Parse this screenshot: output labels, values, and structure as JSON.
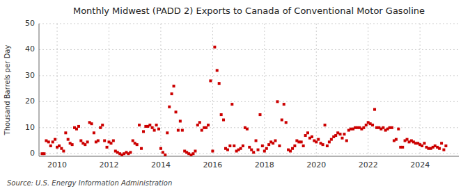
{
  "chart_data": {
    "type": "scatter",
    "title": "Monthly Midwest (PADD 2) Exports to Canada of Conventional Motor Gasoline",
    "ylabel": "Thousand Barrels per Day",
    "source": "Source: U.S. Energy Information Administration",
    "color": "#cc0000",
    "marker": "square",
    "grid": true,
    "xlim": [
      2009.3,
      2025.5
    ],
    "xticks": [
      2010,
      2012,
      2014,
      2016,
      2018,
      2020,
      2022,
      2024
    ],
    "ylim": [
      -1,
      50
    ],
    "yticks": [
      0,
      10,
      20,
      30,
      40,
      50
    ],
    "x": [
      2009.42,
      2009.5,
      2009.58,
      2009.67,
      2009.75,
      2009.83,
      2009.92,
      2010.0,
      2010.08,
      2010.17,
      2010.25,
      2010.33,
      2010.42,
      2010.5,
      2010.58,
      2010.67,
      2010.75,
      2010.83,
      2010.92,
      2011.0,
      2011.08,
      2011.17,
      2011.25,
      2011.33,
      2011.42,
      2011.5,
      2011.58,
      2011.67,
      2011.75,
      2011.83,
      2011.92,
      2012.0,
      2012.08,
      2012.17,
      2012.25,
      2012.33,
      2012.42,
      2012.5,
      2012.58,
      2012.67,
      2012.75,
      2012.83,
      2012.92,
      2013.0,
      2013.08,
      2013.17,
      2013.25,
      2013.33,
      2013.42,
      2013.5,
      2013.58,
      2013.67,
      2013.75,
      2013.83,
      2013.92,
      2014.0,
      2014.08,
      2014.17,
      2014.25,
      2014.33,
      2014.42,
      2014.5,
      2014.58,
      2014.67,
      2014.75,
      2014.83,
      2014.92,
      2015.0,
      2015.08,
      2015.17,
      2015.25,
      2015.33,
      2015.42,
      2015.5,
      2015.58,
      2015.67,
      2015.75,
      2015.83,
      2015.92,
      2016.0,
      2016.08,
      2016.17,
      2016.25,
      2016.33,
      2016.42,
      2016.5,
      2016.58,
      2016.67,
      2016.75,
      2016.83,
      2016.92,
      2017.0,
      2017.08,
      2017.17,
      2017.25,
      2017.33,
      2017.42,
      2017.5,
      2017.58,
      2017.67,
      2017.75,
      2017.83,
      2017.92,
      2018.0,
      2018.08,
      2018.17,
      2018.25,
      2018.33,
      2018.42,
      2018.5,
      2018.58,
      2018.67,
      2018.75,
      2018.83,
      2018.92,
      2019.0,
      2019.08,
      2019.17,
      2019.25,
      2019.33,
      2019.42,
      2019.5,
      2019.58,
      2019.67,
      2019.75,
      2019.83,
      2019.92,
      2020.0,
      2020.08,
      2020.17,
      2020.25,
      2020.33,
      2020.42,
      2020.5,
      2020.58,
      2020.67,
      2020.75,
      2020.83,
      2020.92,
      2021.0,
      2021.08,
      2021.17,
      2021.25,
      2021.33,
      2021.42,
      2021.5,
      2021.58,
      2021.67,
      2021.75,
      2021.83,
      2021.92,
      2022.0,
      2022.08,
      2022.17,
      2022.25,
      2022.33,
      2022.42,
      2022.5,
      2022.58,
      2022.67,
      2022.75,
      2022.83,
      2022.92,
      2023.0,
      2023.08,
      2023.17,
      2023.25,
      2023.33,
      2023.42,
      2023.5,
      2023.58,
      2023.67,
      2023.75,
      2023.83,
      2023.92,
      2024.0,
      2024.08,
      2024.17,
      2024.25,
      2024.33,
      2024.42,
      2024.5,
      2024.58,
      2024.67,
      2024.75,
      2024.83,
      2024.92,
      2025.0
    ],
    "values": [
      0.0,
      0.0,
      5.0,
      4.5,
      3.0,
      4.5,
      5.5,
      2.5,
      3.0,
      2.0,
      1.0,
      8.0,
      5.5,
      4.0,
      3.5,
      10.0,
      9.5,
      10.5,
      5.0,
      4.0,
      3.5,
      4.5,
      12.0,
      11.5,
      8.0,
      4.5,
      5.0,
      10.0,
      11.0,
      5.0,
      2.5,
      4.5,
      4.0,
      5.0,
      1.0,
      0.5,
      0.0,
      -0.5,
      0.0,
      0.5,
      0.0,
      0.5,
      5.0,
      4.0,
      3.5,
      11.0,
      2.0,
      8.5,
      10.5,
      10.5,
      11.0,
      10.0,
      9.0,
      11.0,
      9.5,
      2.0,
      0.5,
      -0.5,
      8.0,
      18.0,
      23.0,
      26.0,
      16.0,
      9.0,
      12.5,
      9.0,
      1.0,
      0.5,
      0.0,
      -0.5,
      0.0,
      1.0,
      11.0,
      12.0,
      9.0,
      10.0,
      10.0,
      11.0,
      28.0,
      1.0,
      41.0,
      32.0,
      27.0,
      15.0,
      13.0,
      2.0,
      1.5,
      3.0,
      19.0,
      3.0,
      1.0,
      1.5,
      2.0,
      3.0,
      10.0,
      9.5,
      2.5,
      1.5,
      0.5,
      5.0,
      1.5,
      15.0,
      3.0,
      1.0,
      2.0,
      3.5,
      4.5,
      4.0,
      5.0,
      20.0,
      3.0,
      13.0,
      19.0,
      12.0,
      1.5,
      1.0,
      2.0,
      3.0,
      5.0,
      4.5,
      4.5,
      3.0,
      7.0,
      8.0,
      6.0,
      6.5,
      5.0,
      4.5,
      5.5,
      4.0,
      3.5,
      11.0,
      3.0,
      4.5,
      5.5,
      6.5,
      7.0,
      8.0,
      7.5,
      6.0,
      7.5,
      5.0,
      9.0,
      9.5,
      9.5,
      10.0,
      10.0,
      10.0,
      9.5,
      10.0,
      11.0,
      12.0,
      11.5,
      11.0,
      17.0,
      10.0,
      10.0,
      9.5,
      10.0,
      9.0,
      9.5,
      10.0,
      10.0,
      5.0,
      5.5,
      9.5,
      2.5,
      2.5,
      5.0,
      5.5,
      4.5,
      5.0,
      4.5,
      4.0,
      4.0,
      3.5,
      3.0,
      4.0,
      2.5,
      2.0,
      2.0,
      2.5,
      3.0,
      2.5,
      2.0,
      4.0,
      1.5,
      3.0
    ]
  }
}
